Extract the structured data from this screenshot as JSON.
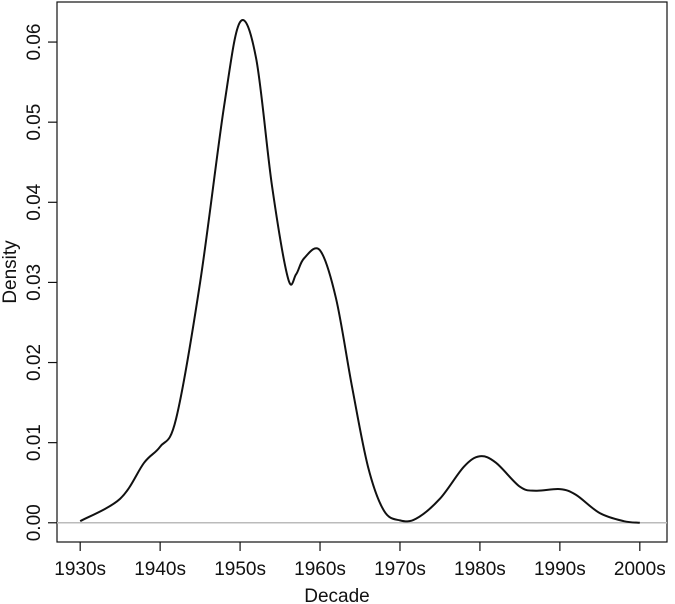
{
  "chart_data": {
    "type": "line",
    "x_label": "Decade",
    "y_label": "Density",
    "x": [
      1930,
      1935,
      1938,
      1940,
      1942,
      1945,
      1948,
      1950,
      1952,
      1954,
      1956,
      1957,
      1958,
      1960,
      1962,
      1964,
      1966,
      1968,
      1970,
      1972,
      1975,
      1978,
      1980,
      1982,
      1985,
      1987,
      1990,
      1992,
      1995,
      1998,
      2000
    ],
    "y": [
      0.0002,
      0.003,
      0.0075,
      0.0095,
      0.013,
      0.03,
      0.052,
      0.0625,
      0.058,
      0.042,
      0.0305,
      0.031,
      0.033,
      0.034,
      0.028,
      0.017,
      0.007,
      0.0015,
      0.0003,
      0.0005,
      0.003,
      0.007,
      0.0083,
      0.0075,
      0.0045,
      0.004,
      0.0042,
      0.0035,
      0.0012,
      0.0002,
      0.0
    ],
    "color": "#111111",
    "xlim": [
      1927.1,
      2003.4
    ],
    "ylim": [
      -0.0024,
      0.065
    ],
    "xticks": [
      {
        "value": 1930,
        "label": "1930s"
      },
      {
        "value": 1940,
        "label": "1940s"
      },
      {
        "value": 1950,
        "label": "1950s"
      },
      {
        "value": 1960,
        "label": "1960s"
      },
      {
        "value": 1970,
        "label": "1970s"
      },
      {
        "value": 1980,
        "label": "1980s"
      },
      {
        "value": 1990,
        "label": "1990s"
      },
      {
        "value": 2000,
        "label": "2000s"
      }
    ],
    "yticks": [
      {
        "value": 0,
        "label": "0.00"
      },
      0.01,
      0.02,
      0.03,
      0.04,
      0.05,
      0.06
    ],
    "zero_line": true
  }
}
